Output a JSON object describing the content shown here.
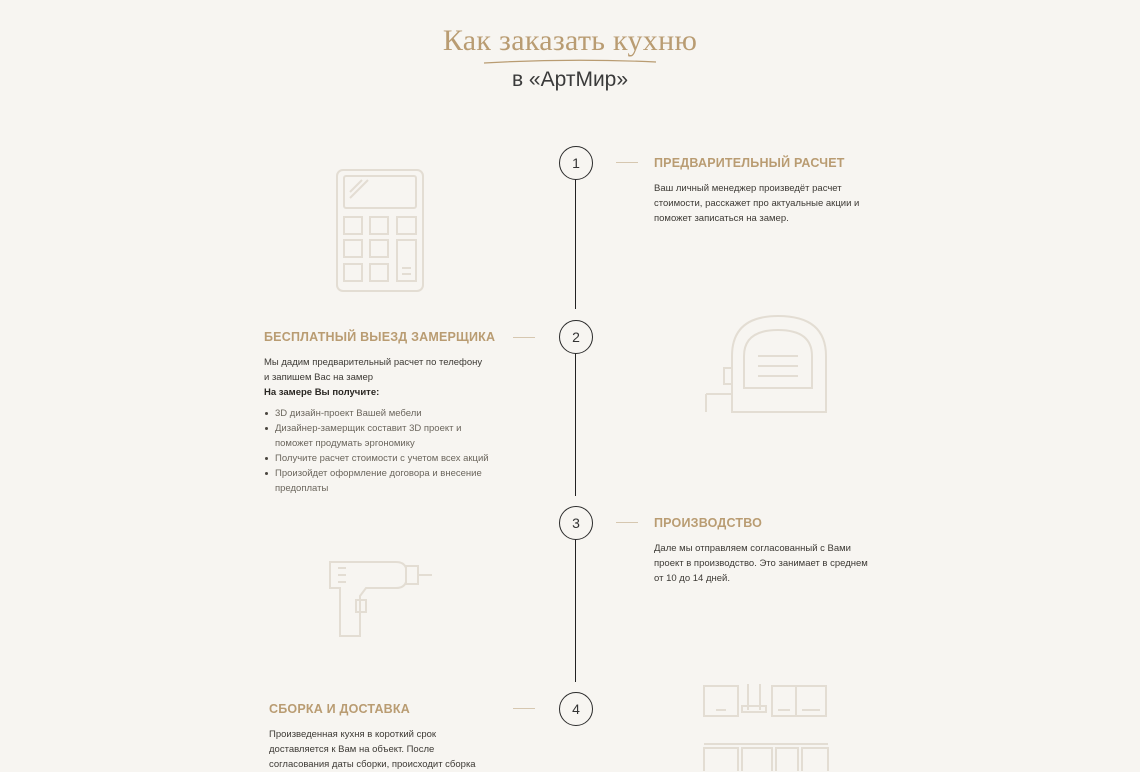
{
  "header": {
    "title": "Как заказать кухню",
    "subtitle": "в «АртМир»"
  },
  "steps": [
    {
      "number": "1",
      "title": "ПРЕДВАРИТЕЛЬНЫЙ РАСЧЕТ",
      "text_lines": [
        "Ваш личный менеджер произведёт расчет",
        "стоимости, расскажет про актуальные акции и",
        "поможет записаться на замер."
      ],
      "icon": "calculator-icon"
    },
    {
      "number": "2",
      "title": "БЕСПЛАТНЫЙ ВЫЕЗД ЗАМЕРЩИКА",
      "text_lines": [
        "Мы дадим предварительный расчет по телефону",
        "и запишем Вас на замер"
      ],
      "bold_line": "На замере Вы получите:",
      "bullets": [
        [
          "3D дизайн-проект Вашей мебели"
        ],
        [
          "Дизайнер-замерщик составит 3D проект и",
          "поможет продумать эргономику"
        ],
        [
          "Получите расчет стоимости с учетом всех акций"
        ],
        [
          "Произойдет оформление договора и внесение",
          "предоплаты"
        ]
      ],
      "icon": "tape-measure-icon"
    },
    {
      "number": "3",
      "title": "ПРОИЗВОДСТВО",
      "text_lines": [
        "Дале мы отправляем согласованный с Вами",
        "проект в производство. Это занимает в среднем",
        "от 10 до 14 дней."
      ],
      "icon": "drill-icon"
    },
    {
      "number": "4",
      "title": "СБОРКА И ДОСТАВКА",
      "text_lines": [
        "Произведенная кухня в короткий срок",
        "доставляется к Вам на объект. После",
        "согласования даты сборки, происходит сборка"
      ],
      "icon": "kitchen-icon"
    }
  ],
  "colors": {
    "background": "#f7f5f1",
    "accent": "#b99c72",
    "icon_stroke": "#e3ddd3"
  }
}
